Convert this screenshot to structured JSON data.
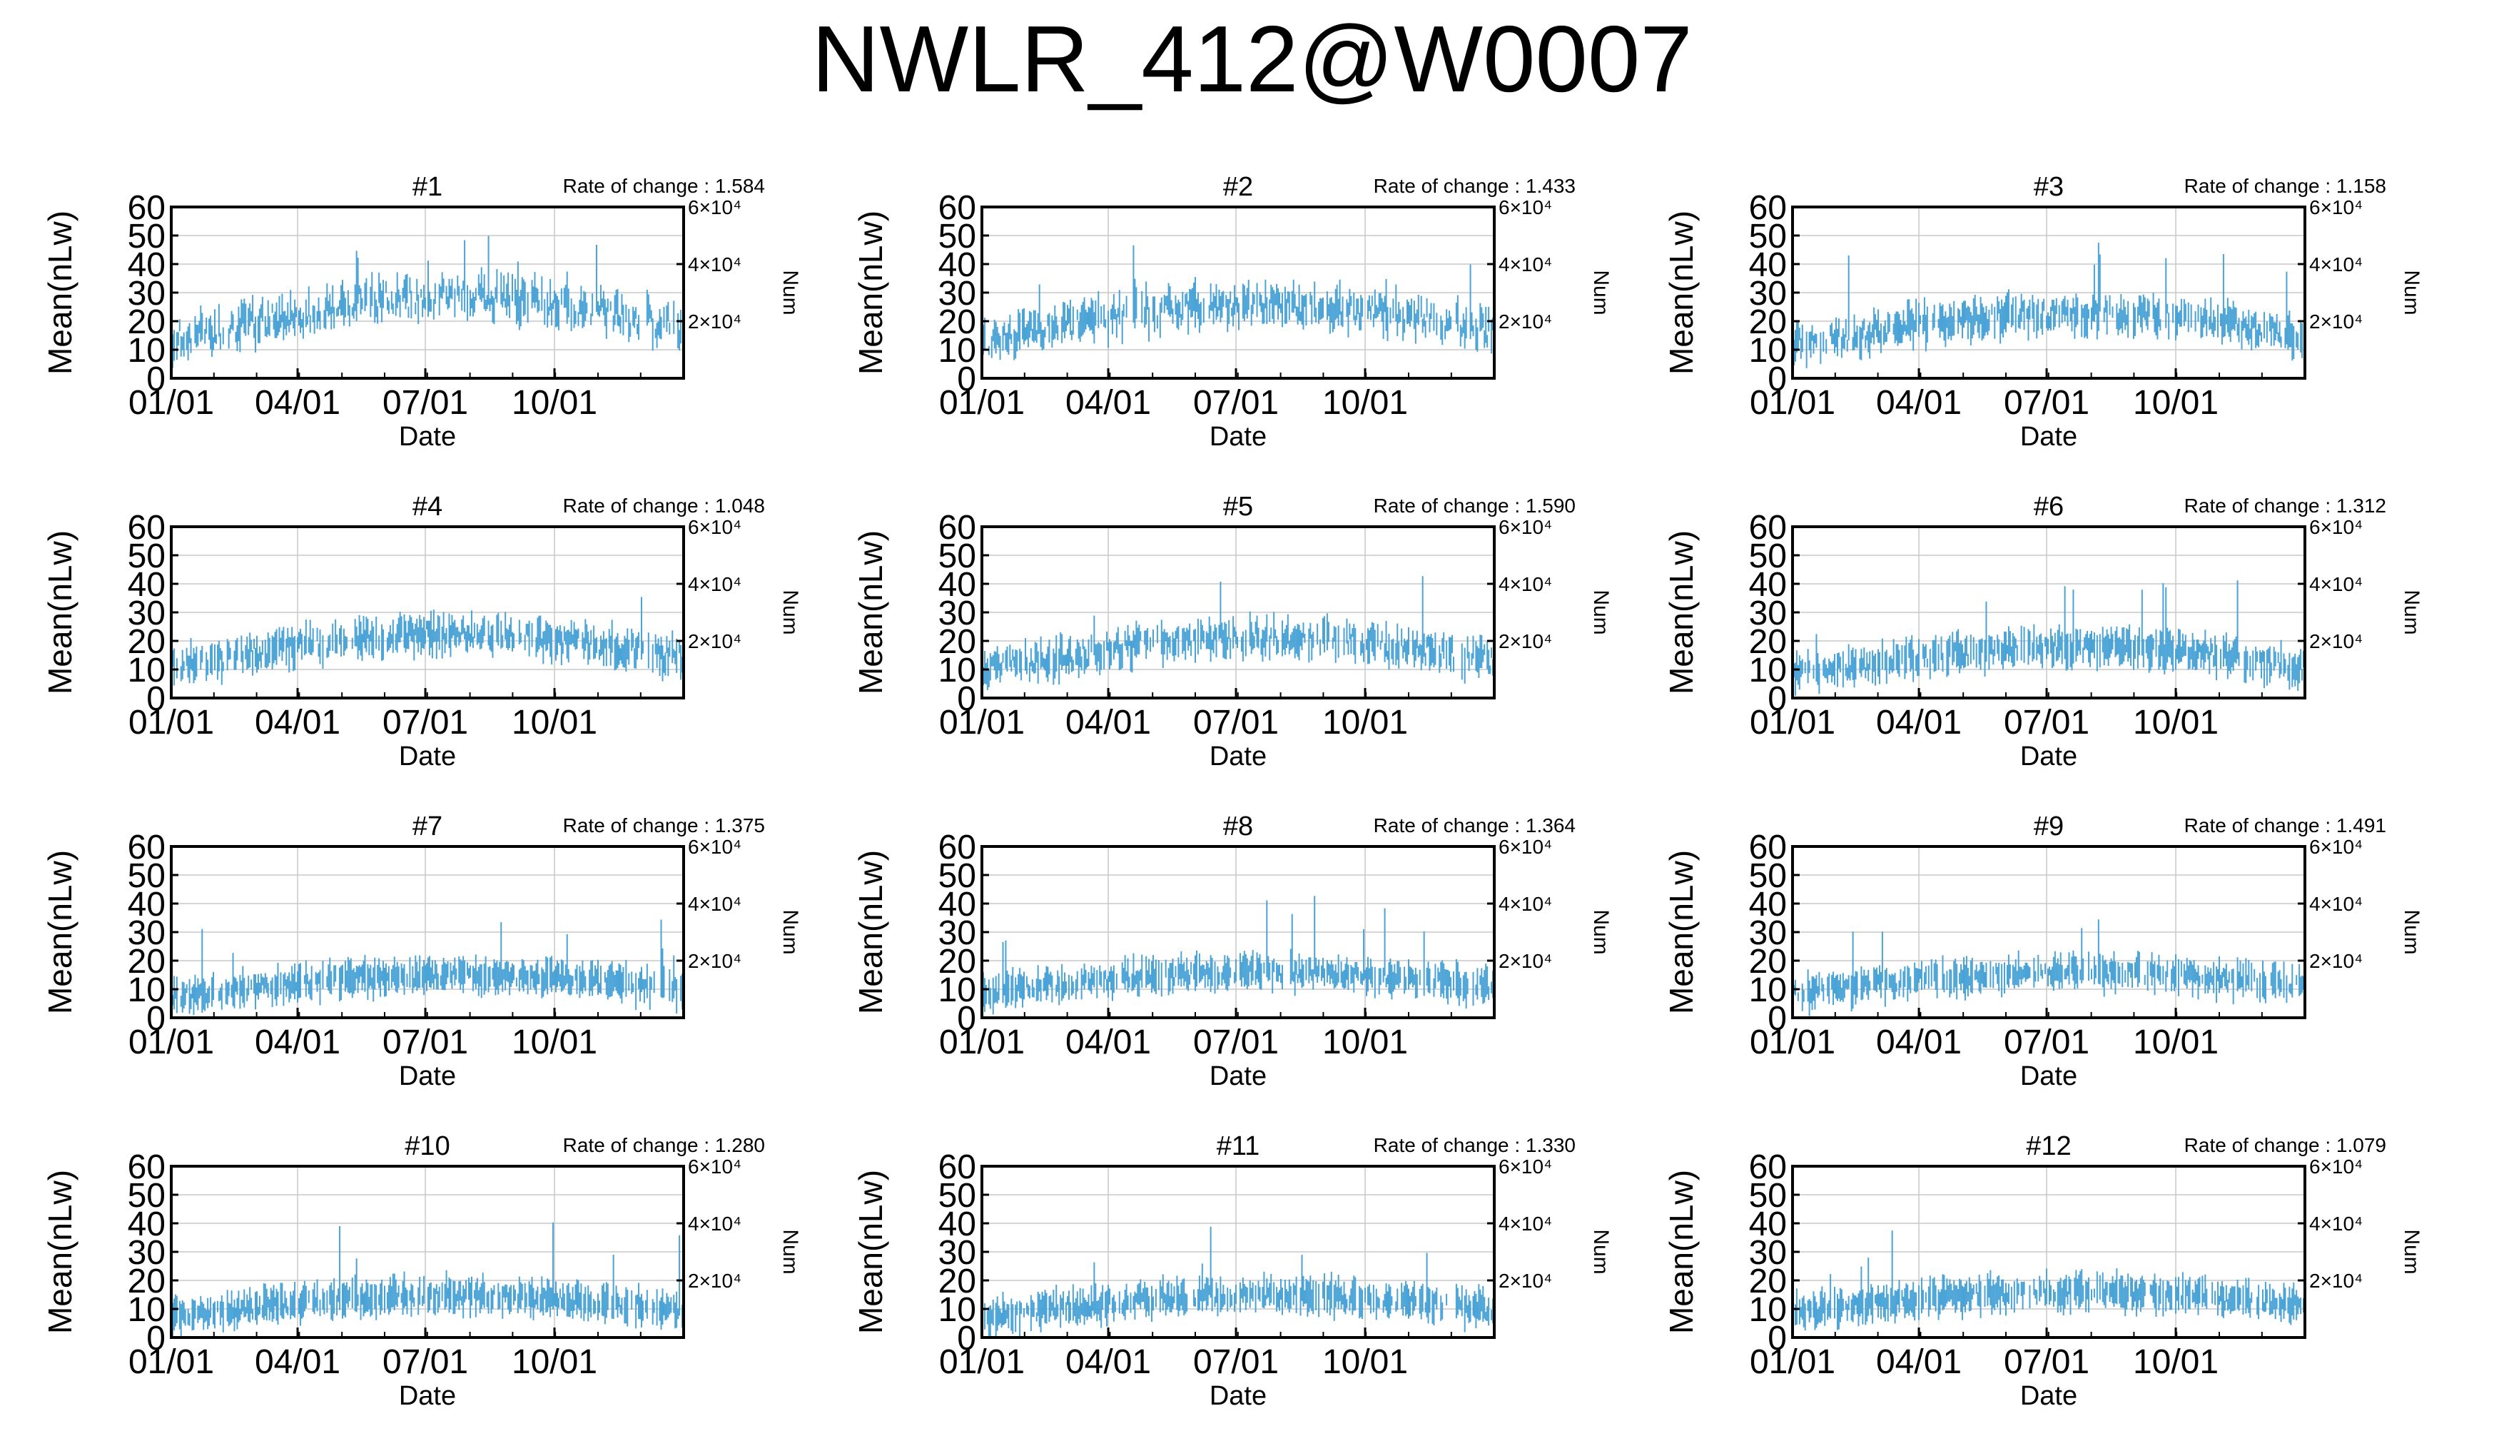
{
  "title": "NWLR_412@W0007",
  "chart_data": {
    "type": "line",
    "panel_count": 12,
    "panels": [
      {
        "label": "#1",
        "rate_of_change": "Rate of change : 1.584",
        "y_level": 26,
        "y_amp": 8
      },
      {
        "label": "#2",
        "rate_of_change": "Rate of change : 1.433",
        "y_level": 24,
        "y_amp": 7
      },
      {
        "label": "#3",
        "rate_of_change": "Rate of change : 1.158",
        "y_level": 22,
        "y_amp": 6
      },
      {
        "label": "#4",
        "rate_of_change": "Rate of change : 1.048",
        "y_level": 21,
        "y_amp": 6
      },
      {
        "label": "#5",
        "rate_of_change": "Rate of change : 1.590",
        "y_level": 19,
        "y_amp": 6
      },
      {
        "label": "#6",
        "rate_of_change": "Rate of change : 1.312",
        "y_level": 16,
        "y_amp": 5
      },
      {
        "label": "#7",
        "rate_of_change": "Rate of change : 1.375",
        "y_level": 14,
        "y_amp": 4
      },
      {
        "label": "#8",
        "rate_of_change": "Rate of change : 1.364",
        "y_level": 16,
        "y_amp": 4
      },
      {
        "label": "#9",
        "rate_of_change": "Rate of change : 1.491",
        "y_level": 16,
        "y_amp": 4
      },
      {
        "label": "#10",
        "rate_of_change": "Rate of change : 1.280",
        "y_level": 14,
        "y_amp": 4
      },
      {
        "label": "#11",
        "rate_of_change": "Rate of change : 1.330",
        "y_level": 14,
        "y_amp": 4
      },
      {
        "label": "#12",
        "rate_of_change": "Rate of change : 1.079",
        "y_level": 16,
        "y_amp": 4
      }
    ],
    "ylabel": "Mean(nLw)",
    "xlabel": "Date",
    "y2label": "Num",
    "y_ticks": [
      "0",
      "10",
      "20",
      "30",
      "40",
      "50",
      "60"
    ],
    "ylim": [
      0,
      60
    ],
    "x_ticks": [
      "01/01",
      "04/01",
      "07/01",
      "10/01"
    ],
    "x_tick_days": [
      0,
      90,
      181,
      273
    ],
    "xlim_days": [
      0,
      365
    ],
    "y2_ticks": [
      {
        "label": "2×10⁴",
        "value": 20000
      },
      {
        "label": "4×10⁴",
        "value": 40000
      },
      {
        "label": "6×10⁴",
        "value": 60000
      }
    ],
    "y2lim": [
      0,
      60000
    ],
    "series_color": "#4aa3d6",
    "grid": true
  }
}
